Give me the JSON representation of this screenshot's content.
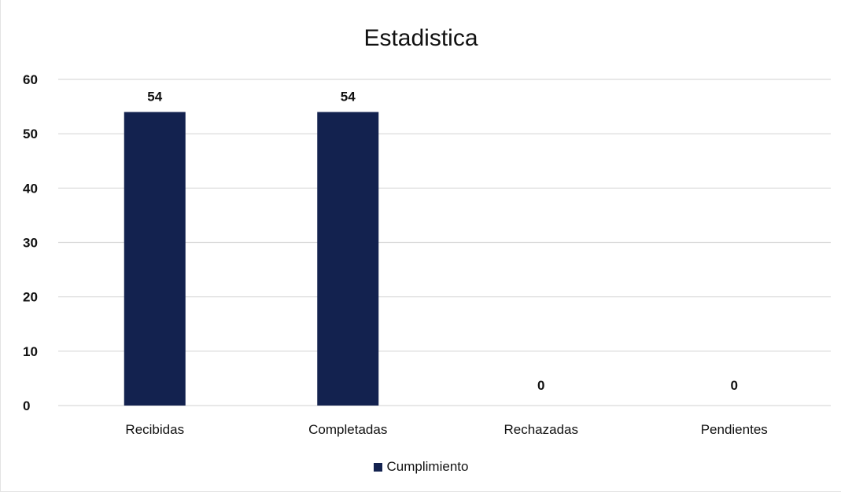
{
  "chart_data": {
    "type": "bar",
    "title": "Estadistica",
    "categories": [
      "Recibidas",
      "Completadas",
      "Rechazadas",
      "Pendientes"
    ],
    "series": [
      {
        "name": "Cumplimiento",
        "values": [
          54,
          54,
          0,
          0
        ]
      }
    ],
    "ylim": [
      0,
      60
    ],
    "yticks": [
      0,
      10,
      20,
      30,
      40,
      50,
      60
    ],
    "data_labels": [
      "54",
      "54",
      "0",
      "0"
    ],
    "grid": true,
    "legend_position": "bottom",
    "colors": {
      "bar": "#13224f",
      "grid": "#d9d9d9"
    }
  }
}
